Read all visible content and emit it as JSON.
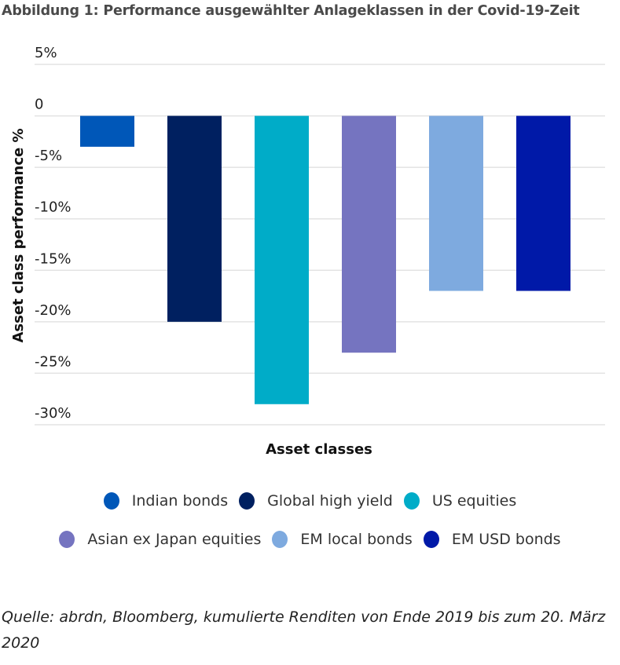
{
  "chart_data": {
    "type": "bar",
    "title": "Abbildung 1: Performance ausgewählter Anlageklassen in der Covid-19-Zeit",
    "xlabel": "Asset classes",
    "ylabel": "Asset class performance %",
    "ylim": [
      -30,
      5
    ],
    "yticks": [
      5,
      0,
      -5,
      -10,
      -15,
      -20,
      -25,
      -30
    ],
    "ytick_labels": [
      "5%",
      "0",
      "-5%",
      "-10%",
      "-15%",
      "-20%",
      "-25%",
      "-30%"
    ],
    "grid": true,
    "legend_position": "bottom",
    "categories": [
      "Indian bonds",
      "Global high yield",
      "US equities",
      "Asian ex Japan equities",
      "EM local bonds",
      "EM USD bonds"
    ],
    "values": [
      -3,
      -20,
      -28,
      -23,
      -17,
      -17
    ],
    "colors": [
      "#0057b8",
      "#002060",
      "#00acc8",
      "#7574c0",
      "#7eaadf",
      "#0019a8"
    ],
    "legend_rows": [
      [
        0,
        1,
        2
      ],
      [
        3,
        4,
        5
      ]
    ]
  },
  "source_note": "Quelle: abrdn, Bloomberg, kumulierte Renditen von Ende 2019 bis zum 20. März 2020"
}
